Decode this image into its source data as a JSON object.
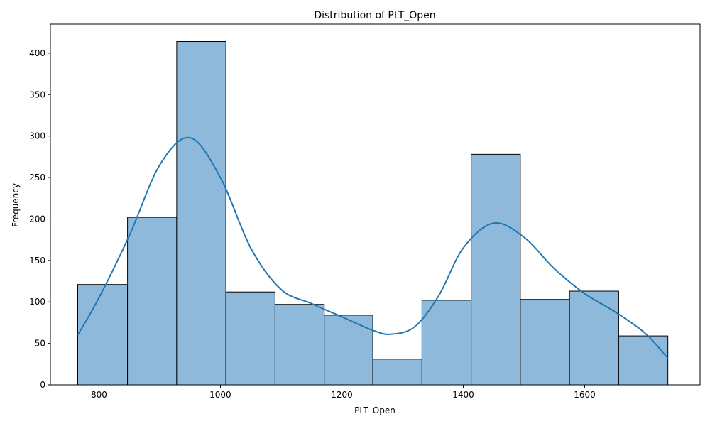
{
  "chart_data": {
    "type": "bar",
    "subtype": "histogram-with-kde",
    "title": "Distribution of PLT_Open",
    "xlabel": "PLT_Open",
    "ylabel": "Frequency",
    "xlim": [
      720,
      1790
    ],
    "ylim": [
      0,
      435
    ],
    "xticks": [
      800,
      1000,
      1200,
      1400,
      1600
    ],
    "yticks": [
      0,
      50,
      100,
      150,
      200,
      250,
      300,
      350,
      400
    ],
    "bins": [
      {
        "x0": 765,
        "x1": 847,
        "count": 121
      },
      {
        "x0": 847,
        "x1": 928,
        "count": 202
      },
      {
        "x0": 928,
        "x1": 1009,
        "count": 414
      },
      {
        "x0": 1009,
        "x1": 1090,
        "count": 112
      },
      {
        "x0": 1090,
        "x1": 1171,
        "count": 97
      },
      {
        "x0": 1171,
        "x1": 1251,
        "count": 84
      },
      {
        "x0": 1251,
        "x1": 1332,
        "count": 31
      },
      {
        "x0": 1332,
        "x1": 1413,
        "count": 102
      },
      {
        "x0": 1413,
        "x1": 1494,
        "count": 278
      },
      {
        "x0": 1494,
        "x1": 1575,
        "count": 103
      },
      {
        "x0": 1575,
        "x1": 1656,
        "count": 113
      },
      {
        "x0": 1656,
        "x1": 1737,
        "count": 59
      }
    ],
    "kde": {
      "x": [
        765,
        800,
        850,
        900,
        950,
        1000,
        1050,
        1100,
        1150,
        1200,
        1250,
        1280,
        1320,
        1360,
        1400,
        1450,
        1500,
        1550,
        1600,
        1650,
        1700,
        1737
      ],
      "y": [
        60,
        105,
        180,
        265,
        298,
        250,
        165,
        115,
        98,
        82,
        66,
        61,
        70,
        108,
        165,
        195,
        178,
        140,
        110,
        88,
        62,
        32
      ]
    },
    "grid": false,
    "bar_color": "#8fb9da",
    "bar_edge_color": "#000000",
    "kde_color": "#1f77b4"
  }
}
